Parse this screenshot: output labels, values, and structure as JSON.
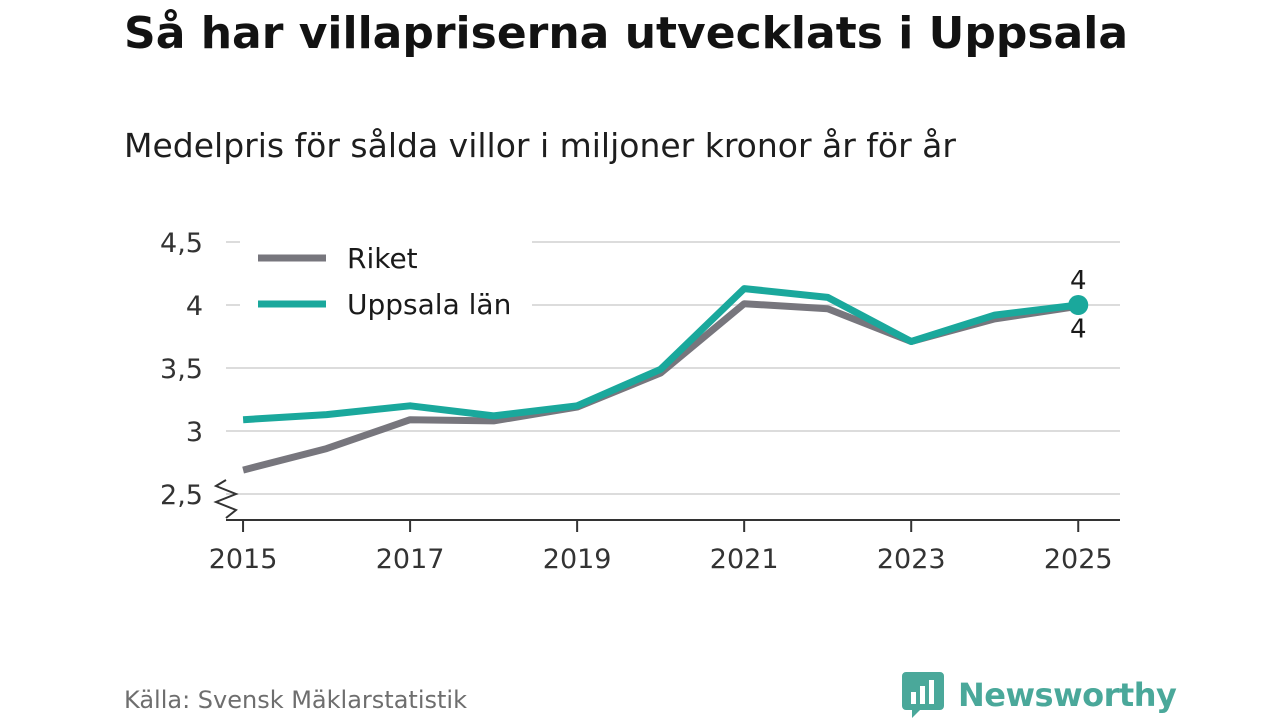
{
  "title": "Så har villapriserna utvecklats i Uppsala",
  "subtitle": "Medelpris för sålda villor i miljoner kronor år för år",
  "source": "Källa: Svensk Mäklarstatistik",
  "brand": {
    "name": "Newsworthy",
    "icon": "bar-chart-bubble-icon",
    "color": "#4aa89a"
  },
  "chart_data": {
    "type": "line",
    "title": "Så har villapriserna utvecklats i Uppsala",
    "subtitle": "Medelpris för sålda villor i miljoner kronor år för år",
    "xlabel": "",
    "ylabel": "",
    "x": [
      2015,
      2016,
      2017,
      2018,
      2019,
      2020,
      2021,
      2022,
      2023,
      2024,
      2025
    ],
    "x_tick_labels": [
      "2015",
      "2017",
      "2019",
      "2021",
      "2023",
      "2025"
    ],
    "x_ticks": [
      2015,
      2017,
      2019,
      2021,
      2023,
      2025
    ],
    "xlim": [
      2014.7,
      2025.5
    ],
    "y_tick_labels": [
      "2,5",
      "3",
      "3,5",
      "4",
      "4,5"
    ],
    "y_ticks": [
      2.5,
      3,
      3.5,
      4,
      4.5
    ],
    "ylim": [
      2.5,
      4.5
    ],
    "y_axis_break": true,
    "grid": true,
    "legend_position": "top-left",
    "series": [
      {
        "name": "Riket",
        "color": "#77767d",
        "values": [
          2.69,
          2.86,
          3.09,
          3.08,
          3.19,
          3.46,
          4.01,
          3.97,
          3.71,
          3.89,
          3.99
        ],
        "end_label": "4",
        "end_label_position": "below"
      },
      {
        "name": "Uppsala län",
        "color": "#1aa89c",
        "values": [
          3.09,
          3.13,
          3.2,
          3.12,
          3.2,
          3.49,
          4.13,
          4.06,
          3.71,
          3.92,
          4.0
        ],
        "end_label": "4",
        "end_label_position": "above",
        "end_marker": true
      }
    ]
  }
}
